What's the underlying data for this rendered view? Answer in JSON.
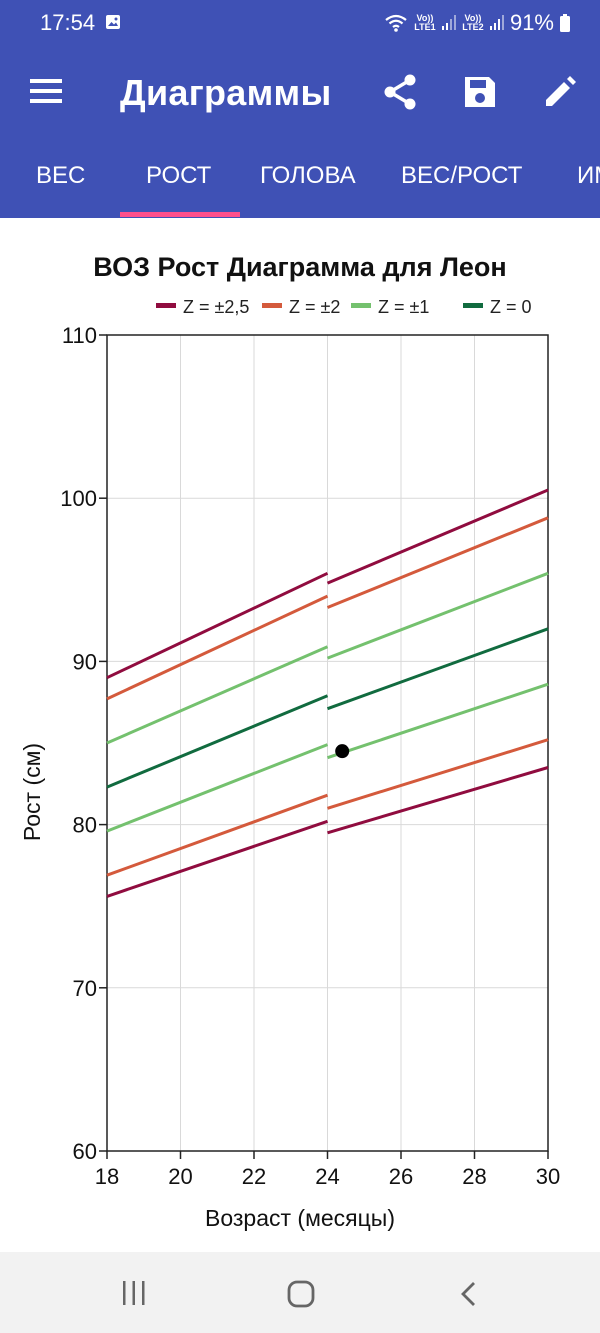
{
  "status": {
    "time": "17:54",
    "battery": "91%",
    "sim1": "Vo)) LTE1",
    "sim2": "Vo)) LTE2"
  },
  "app": {
    "title": "Диаграммы"
  },
  "tabs": [
    {
      "label": "ВЕС"
    },
    {
      "label": "РОСТ",
      "selected": true
    },
    {
      "label": "ГОЛОВА"
    },
    {
      "label": "ВЕС/РОСТ"
    },
    {
      "label": "ИМ"
    }
  ],
  "icons": {
    "menu": "menu-icon",
    "share": "share-icon",
    "save": "save-icon",
    "edit": "edit-icon",
    "recent": "recent-apps-icon",
    "home": "home-icon",
    "back": "back-icon"
  },
  "colors": {
    "primary": "#3f51b5",
    "tab_indicator": "#ff4f8b"
  },
  "chart_data": {
    "type": "line",
    "title": "ВОЗ Рост Диаграмма для Леон",
    "xlabel": "Возраст (месяцы)",
    "ylabel": "Рост (см)",
    "xlim": [
      18,
      30
    ],
    "ylim": [
      60,
      110
    ],
    "x_ticks": [
      18,
      20,
      22,
      24,
      26,
      28,
      30
    ],
    "y_ticks": [
      60,
      70,
      80,
      90,
      100,
      110
    ],
    "grid": true,
    "legend_position": "top",
    "legend": [
      {
        "label": "Z = ±2,5",
        "color": "#900c3f"
      },
      {
        "label": "Z = ±2",
        "color": "#d45a3c"
      },
      {
        "label": "Z = ±1",
        "color": "#74c16e"
      },
      {
        "label": "Z = 0",
        "color": "#116b3f"
      }
    ],
    "series": [
      {
        "z": "+2.5",
        "color": "#900c3f",
        "segments": [
          {
            "x": [
              18,
              24
            ],
            "y": [
              89.0,
              95.4
            ]
          },
          {
            "x": [
              24,
              30
            ],
            "y": [
              94.8,
              100.5
            ]
          }
        ]
      },
      {
        "z": "+2",
        "color": "#d45a3c",
        "segments": [
          {
            "x": [
              18,
              24
            ],
            "y": [
              87.7,
              94.0
            ]
          },
          {
            "x": [
              24,
              30
            ],
            "y": [
              93.3,
              98.8
            ]
          }
        ]
      },
      {
        "z": "+1",
        "color": "#74c16e",
        "segments": [
          {
            "x": [
              18,
              24
            ],
            "y": [
              85.0,
              90.9
            ]
          },
          {
            "x": [
              24,
              30
            ],
            "y": [
              90.2,
              95.4
            ]
          }
        ]
      },
      {
        "z": "0",
        "color": "#116b3f",
        "segments": [
          {
            "x": [
              18,
              24
            ],
            "y": [
              82.3,
              87.9
            ]
          },
          {
            "x": [
              24,
              30
            ],
            "y": [
              87.1,
              92.0
            ]
          }
        ]
      },
      {
        "z": "-1",
        "color": "#74c16e",
        "segments": [
          {
            "x": [
              18,
              24
            ],
            "y": [
              79.6,
              84.9
            ]
          },
          {
            "x": [
              24,
              30
            ],
            "y": [
              84.1,
              88.6
            ]
          }
        ]
      },
      {
        "z": "-2",
        "color": "#d45a3c",
        "segments": [
          {
            "x": [
              18,
              24
            ],
            "y": [
              76.9,
              81.8
            ]
          },
          {
            "x": [
              24,
              30
            ],
            "y": [
              81.0,
              85.2
            ]
          }
        ]
      },
      {
        "z": "-2.5",
        "color": "#900c3f",
        "segments": [
          {
            "x": [
              18,
              24
            ],
            "y": [
              75.6,
              80.2
            ]
          },
          {
            "x": [
              24,
              30
            ],
            "y": [
              79.5,
              83.5
            ]
          }
        ]
      }
    ],
    "points": [
      {
        "x": 24.4,
        "y": 84.5,
        "color": "#000000"
      }
    ]
  }
}
